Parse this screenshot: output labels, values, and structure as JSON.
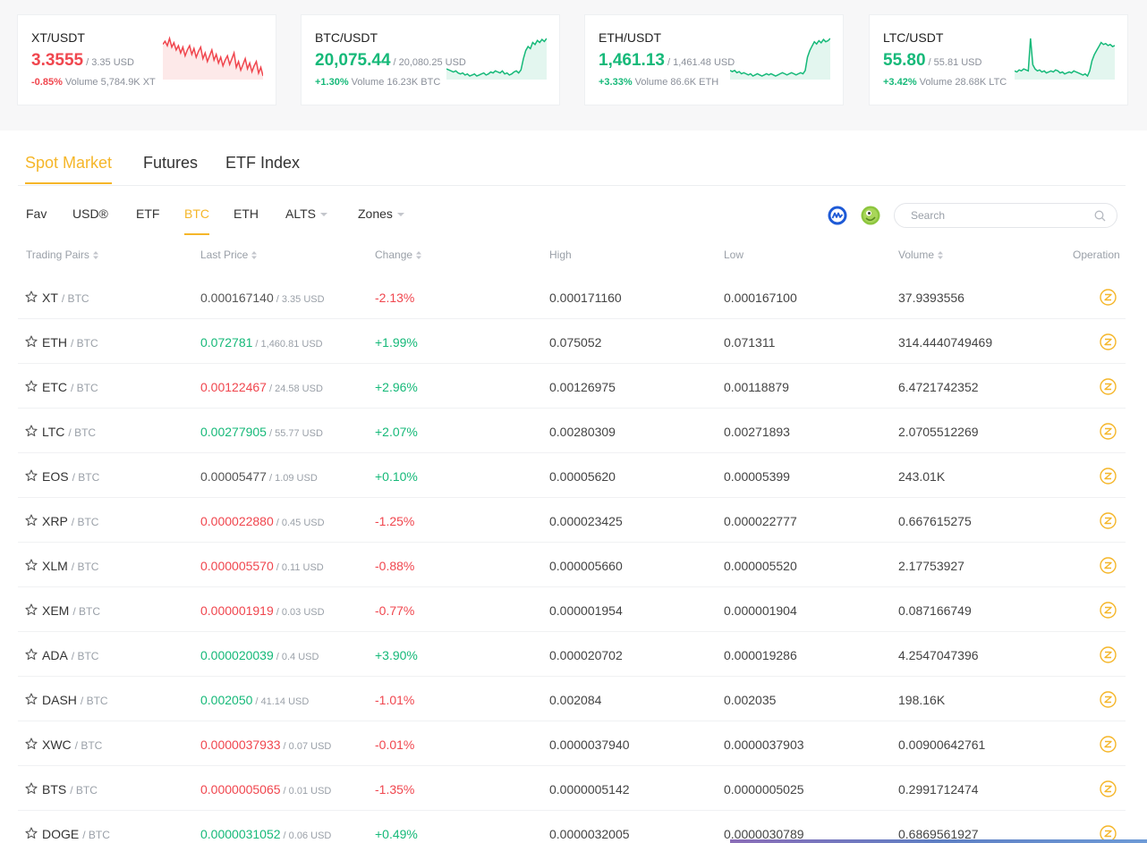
{
  "tickers": [
    {
      "pair": "XT/USDT",
      "price": "3.3555",
      "usd": "/ 3.35 USD",
      "change": "-0.85%",
      "volume": "Volume 5,784.9K XT",
      "trend": "down",
      "spark": [
        62,
        60,
        63,
        58,
        64,
        61,
        66,
        63,
        68,
        64,
        70,
        66,
        63,
        69,
        65,
        71,
        67,
        64,
        72,
        68,
        74,
        70,
        66,
        73,
        69,
        75,
        71,
        77,
        73,
        70,
        76,
        72,
        68,
        78,
        74,
        80,
        76,
        72,
        79,
        75,
        81,
        77,
        74,
        82,
        78,
        84
      ]
    },
    {
      "pair": "BTC/USDT",
      "price": "20,075.44",
      "usd": "/ 20,080.25 USD",
      "change": "+1.30%",
      "volume": "Volume 16.23K BTC",
      "trend": "up",
      "spark": [
        70,
        71,
        72,
        73,
        72,
        74,
        75,
        74,
        76,
        75,
        77,
        76,
        75,
        77,
        76,
        75,
        74,
        76,
        75,
        73,
        74,
        72,
        73,
        74,
        72,
        75,
        74,
        76,
        75,
        73,
        72,
        74,
        71,
        60,
        52,
        48,
        50,
        44,
        46,
        42,
        44,
        41,
        43,
        40
      ]
    },
    {
      "pair": "ETH/USDT",
      "price": "1,461.13",
      "usd": "/ 1,461.48 USD",
      "change": "+3.33%",
      "volume": "Volume 86.6K ETH",
      "trend": "up",
      "spark": [
        74,
        75,
        74,
        76,
        75,
        77,
        76,
        77,
        78,
        77,
        79,
        78,
        77,
        78,
        79,
        78,
        77,
        78,
        77,
        78,
        79,
        78,
        77,
        76,
        77,
        78,
        77,
        76,
        77,
        78,
        77,
        76,
        77,
        74,
        62,
        56,
        52,
        48,
        50,
        47,
        49,
        46,
        48,
        47,
        45
      ]
    },
    {
      "pair": "LTC/USDT",
      "price": "55.80",
      "usd": "/ 55.81 USD",
      "change": "+3.42%",
      "volume": "Volume 28.68K LTC",
      "trend": "up",
      "spark": [
        72,
        73,
        71,
        72,
        70,
        71,
        72,
        40,
        66,
        70,
        72,
        71,
        73,
        72,
        74,
        73,
        72,
        73,
        71,
        72,
        74,
        73,
        75,
        74,
        73,
        74,
        72,
        73,
        74,
        75,
        76,
        75,
        77,
        72,
        62,
        56,
        52,
        48,
        44,
        46,
        45,
        47,
        46,
        48,
        47
      ]
    }
  ],
  "market_tabs": [
    "Spot Market",
    "Futures",
    "ETF Index"
  ],
  "sub_tabs": [
    "Fav",
    "USD®",
    "ETF",
    "BTC",
    "ETH",
    "ALTS",
    "Zones"
  ],
  "search": {
    "placeholder": "Search"
  },
  "colors": {
    "accent": "#f5b629",
    "up": "#16b979",
    "down": "#f0464e"
  },
  "icons": {
    "coinmarketcap": "coinmarketcap-icon",
    "coingecko": "coingecko-icon",
    "search": "search-icon",
    "star": "star-icon",
    "trade": "trade-icon"
  },
  "table": {
    "headers": {
      "pair": "Trading Pairs",
      "last": "Last Price",
      "change": "Change",
      "high": "High",
      "low": "Low",
      "volume": "Volume",
      "operation": "Operation"
    },
    "rows": [
      {
        "base": "XT",
        "quote": "/ BTC",
        "price": "0.000167140",
        "usd": "/ 3.35 USD",
        "price_dir": "neutral",
        "change": "-2.13%",
        "change_dir": "down",
        "high": "0.000171160",
        "low": "0.000167100",
        "volume": "37.9393556"
      },
      {
        "base": "ETH",
        "quote": "/ BTC",
        "price": "0.072781",
        "usd": "/ 1,460.81 USD",
        "price_dir": "up",
        "change": "+1.99%",
        "change_dir": "up",
        "high": "0.075052",
        "low": "0.071311",
        "volume": "314.4440749469"
      },
      {
        "base": "ETC",
        "quote": "/ BTC",
        "price": "0.00122467",
        "usd": "/ 24.58 USD",
        "price_dir": "down",
        "change": "+2.96%",
        "change_dir": "up",
        "high": "0.00126975",
        "low": "0.00118879",
        "volume": "6.4721742352"
      },
      {
        "base": "LTC",
        "quote": "/ BTC",
        "price": "0.00277905",
        "usd": "/ 55.77 USD",
        "price_dir": "up",
        "change": "+2.07%",
        "change_dir": "up",
        "high": "0.00280309",
        "low": "0.00271893",
        "volume": "2.0705512269"
      },
      {
        "base": "EOS",
        "quote": "/ BTC",
        "price": "0.00005477",
        "usd": "/ 1.09 USD",
        "price_dir": "neutral",
        "change": "+0.10%",
        "change_dir": "up",
        "high": "0.00005620",
        "low": "0.00005399",
        "volume": "243.01K"
      },
      {
        "base": "XRP",
        "quote": "/ BTC",
        "price": "0.000022880",
        "usd": "/ 0.45 USD",
        "price_dir": "down",
        "change": "-1.25%",
        "change_dir": "down",
        "high": "0.000023425",
        "low": "0.000022777",
        "volume": "0.667615275"
      },
      {
        "base": "XLM",
        "quote": "/ BTC",
        "price": "0.000005570",
        "usd": "/ 0.11 USD",
        "price_dir": "down",
        "change": "-0.88%",
        "change_dir": "down",
        "high": "0.000005660",
        "low": "0.000005520",
        "volume": "2.17753927"
      },
      {
        "base": "XEM",
        "quote": "/ BTC",
        "price": "0.000001919",
        "usd": "/ 0.03 USD",
        "price_dir": "down",
        "change": "-0.77%",
        "change_dir": "down",
        "high": "0.000001954",
        "low": "0.000001904",
        "volume": "0.087166749"
      },
      {
        "base": "ADA",
        "quote": "/ BTC",
        "price": "0.000020039",
        "usd": "/ 0.4 USD",
        "price_dir": "up",
        "change": "+3.90%",
        "change_dir": "up",
        "high": "0.000020702",
        "low": "0.000019286",
        "volume": "4.2547047396"
      },
      {
        "base": "DASH",
        "quote": "/ BTC",
        "price": "0.002050",
        "usd": "/ 41.14 USD",
        "price_dir": "up",
        "change": "-1.01%",
        "change_dir": "down",
        "high": "0.002084",
        "low": "0.002035",
        "volume": "198.16K"
      },
      {
        "base": "XWC",
        "quote": "/ BTC",
        "price": "0.0000037933",
        "usd": "/ 0.07 USD",
        "price_dir": "down",
        "change": "-0.01%",
        "change_dir": "down",
        "high": "0.0000037940",
        "low": "0.0000037903",
        "volume": "0.00900642761"
      },
      {
        "base": "BTS",
        "quote": "/ BTC",
        "price": "0.0000005065",
        "usd": "/ 0.01 USD",
        "price_dir": "down",
        "change": "-1.35%",
        "change_dir": "down",
        "high": "0.0000005142",
        "low": "0.0000005025",
        "volume": "0.2991712474"
      },
      {
        "base": "DOGE",
        "quote": "/ BTC",
        "price": "0.0000031052",
        "usd": "/ 0.06 USD",
        "price_dir": "up",
        "change": "+0.49%",
        "change_dir": "up",
        "high": "0.0000032005",
        "low": "0.0000030789",
        "volume": "0.6869561927"
      }
    ]
  }
}
